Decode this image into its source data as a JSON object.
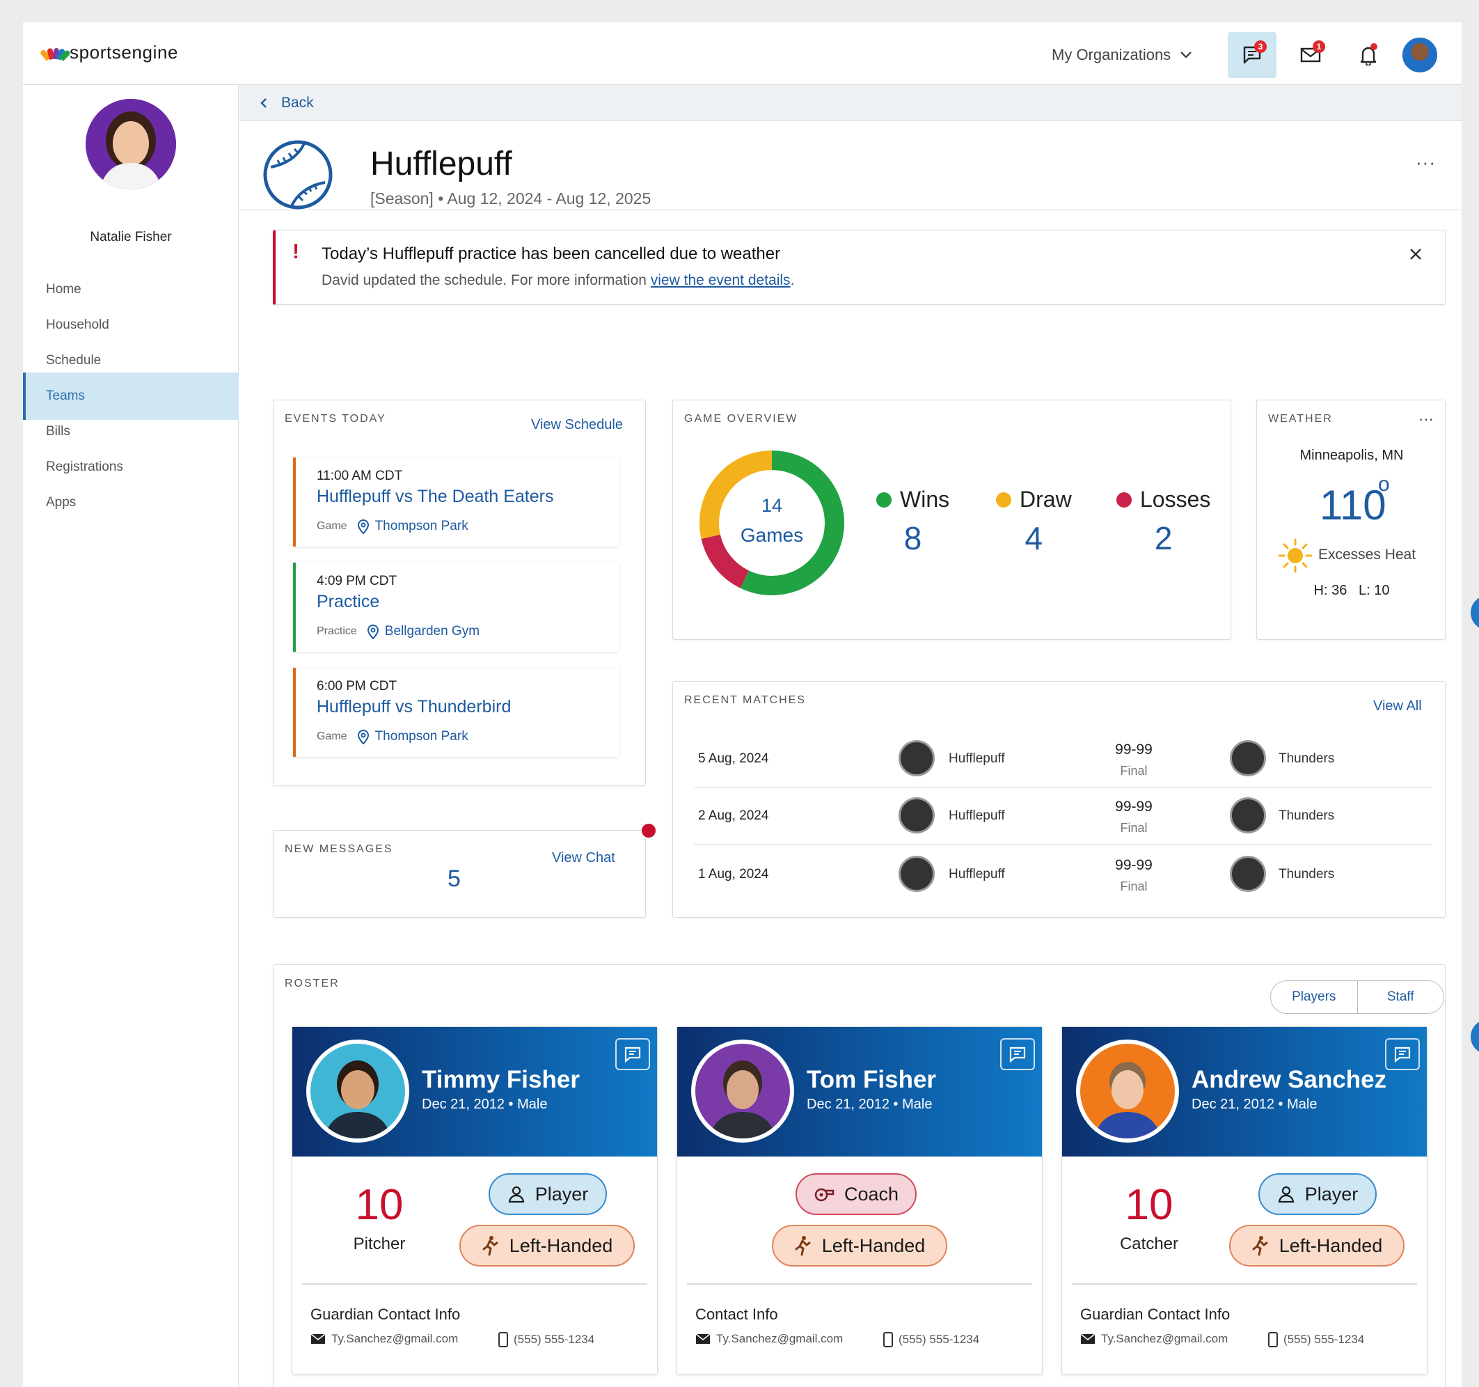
{
  "app": {
    "brand": "sportsengine"
  },
  "topbar": {
    "org_label": "My Organizations",
    "chat_badge": "3",
    "mail_badge": "1"
  },
  "sidebar": {
    "user_name": "Natalie Fisher",
    "items": [
      {
        "label": "Home"
      },
      {
        "label": "Household"
      },
      {
        "label": "Schedule"
      },
      {
        "label": "Teams"
      },
      {
        "label": "Bills"
      },
      {
        "label": "Registrations"
      },
      {
        "label": "Apps"
      }
    ]
  },
  "back_label": "Back",
  "team": {
    "name": "Hufflepuff",
    "season": "[Season]",
    "sep": "•",
    "dates": "Aug 12, 2024 - Aug 12, 2025"
  },
  "alert": {
    "icon": "!",
    "title": "Today’s Hufflepuff practice has been cancelled due to weather",
    "body": "David updated the schedule. For more information",
    "link": "view the event details",
    "tail": "."
  },
  "events": {
    "title": "EVENTS TODAY",
    "link": "View Schedule",
    "items": [
      {
        "time": "11:00 AM CDT",
        "title": "Hufflepuff vs The Death Eaters",
        "type": "Game",
        "location": "Thompson Park",
        "color": "#e06a1a"
      },
      {
        "time": "4:09 PM CDT",
        "title": "Practice",
        "type": "Practice",
        "location": "Bellgarden Gym",
        "color": "#21a344"
      },
      {
        "time": "6:00 PM CDT",
        "title": "Hufflepuff vs Thunderbird",
        "type": "Game",
        "location": "Thompson Park",
        "color": "#e06a1a"
      }
    ]
  },
  "messages": {
    "title": "NEW MESSAGES",
    "link": "View Chat",
    "count": "5"
  },
  "overview": {
    "title": "GAME OVERVIEW",
    "center_num": "14",
    "center_label": "Games",
    "wins_label": "Wins",
    "wins": 8,
    "wins_color": "#21a344",
    "draw_label": "Draw",
    "draw": 4,
    "draw_color": "#f3b21b",
    "losses_label": "Losses",
    "losses": 2,
    "losses_color": "#c8234a"
  },
  "weather": {
    "title": "WEATHER",
    "city": "Minneapolis, MN",
    "temp": "110",
    "deg": "o",
    "condition": "Excesses Heat",
    "hilo": "H: 36   L: 10"
  },
  "matches": {
    "title": "RECENT MATCHES",
    "link": "View All",
    "rows": [
      {
        "date": "5 Aug, 2024",
        "home": "Hufflepuff",
        "score": "99-99",
        "status": "Final",
        "away": "Thunders"
      },
      {
        "date": "2 Aug, 2024",
        "home": "Hufflepuff",
        "score": "99-99",
        "status": "Final",
        "away": "Thunders"
      },
      {
        "date": "1 Aug, 2024",
        "home": "Hufflepuff",
        "score": "99-99",
        "status": "Final",
        "away": "Thunders"
      }
    ]
  },
  "roster": {
    "title": "ROSTER",
    "tabs": [
      "Players",
      "Staff"
    ],
    "cards": [
      {
        "name": "Timmy Fisher",
        "sub": "Dec 21, 2012 • Male",
        "number": "10",
        "position": "Pitcher",
        "role": "Player",
        "hand": "Left-Handed",
        "contact_title": "Guardian Contact Info",
        "email": "Ty.Sanchez@gmail.com",
        "phone": "(555) 555-1234"
      },
      {
        "name": "Tom Fisher",
        "sub": "Dec 21, 2012 • Male",
        "role": "Coach",
        "hand": "Left-Handed",
        "contact_title": "Contact Info",
        "email": "Ty.Sanchez@gmail.com",
        "phone": "(555) 555-1234"
      },
      {
        "name": "Andrew Sanchez",
        "sub": "Dec 21, 2012 • Male",
        "number": "10",
        "position": "Catcher",
        "role": "Player",
        "hand": "Left-Handed",
        "contact_title": "Guardian Contact Info",
        "email": "Ty.Sanchez@gmail.com",
        "phone": "(555) 555-1234"
      }
    ]
  }
}
